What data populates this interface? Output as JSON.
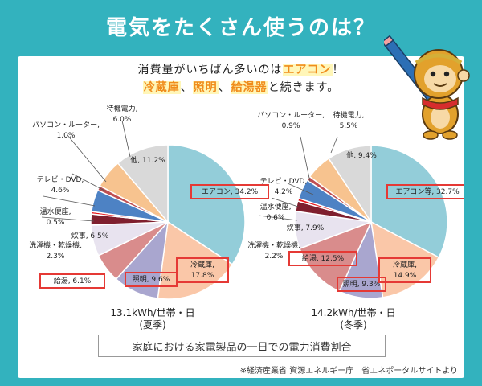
{
  "banner": {
    "title": "電気をたくさん使うのは？"
  },
  "headline": {
    "line1_prefix": "消費量がいちばん多いのは",
    "line1_emph": "エアコン",
    "line1_suffix": "！",
    "line2_items": [
      "冷蔵庫",
      "照明",
      "給湯器"
    ],
    "line2_sep": "、",
    "line2_suffix": "と続きます。"
  },
  "chart_data": [
    {
      "type": "pie",
      "total_label": "13.1kWh/世帯・日",
      "season_label": "(夏季)",
      "slices": [
        {
          "label": "エアコン",
          "value": 34.2,
          "value_text": "34.2%",
          "color": "#93cdd9",
          "highlight": true
        },
        {
          "label": "冷蔵庫",
          "value": 17.8,
          "value_text": "17.8%",
          "color": "#fac7a8",
          "highlight": true
        },
        {
          "label": "照明",
          "value": 9.6,
          "value_text": "9.6%",
          "color": "#a9a6cf",
          "highlight": true
        },
        {
          "label": "給湯",
          "value": 6.1,
          "value_text": "6.1%",
          "color": "#d98c8c",
          "highlight": true
        },
        {
          "label": "炊事",
          "value": 6.5,
          "value_text": "6.5%",
          "color": "#e8e3ef",
          "highlight": false
        },
        {
          "label": "洗濯機・乾燥機",
          "value": 2.3,
          "value_text": "2.3%",
          "color": "#7f1f2e",
          "highlight": false
        },
        {
          "label": "温水便座",
          "value": 0.5,
          "value_text": "0.5%",
          "color": "#e8161b",
          "highlight": false
        },
        {
          "label": "テレビ・DVD",
          "value": 4.6,
          "value_text": "4.6%",
          "color": "#4d82c4",
          "highlight": false
        },
        {
          "label": "パソコン・ルーター",
          "value": 1.0,
          "value_text": "1.0%",
          "color": "#c04f52",
          "highlight": false
        },
        {
          "label": "待機電力",
          "value": 6.0,
          "value_text": "6.0%",
          "color": "#f7c38f",
          "highlight": false
        },
        {
          "label": "他",
          "value": 11.2,
          "value_text": "11.2%",
          "color": "#d9d9d9",
          "highlight": false
        }
      ]
    },
    {
      "type": "pie",
      "total_label": "14.2kWh/世帯・日",
      "season_label": "(冬季)",
      "slices": [
        {
          "label": "エアコン等",
          "value": 32.7,
          "value_text": "32.7%",
          "color": "#93cdd9",
          "highlight": true
        },
        {
          "label": "冷蔵庫",
          "value": 14.9,
          "value_text": "14.9%",
          "color": "#fac7a8",
          "highlight": true
        },
        {
          "label": "照明",
          "value": 9.3,
          "value_text": "9.3%",
          "color": "#a9a6cf",
          "highlight": true
        },
        {
          "label": "給湯",
          "value": 12.5,
          "value_text": "12.5%",
          "color": "#d98c8c",
          "highlight": true
        },
        {
          "label": "炊事",
          "value": 7.9,
          "value_text": "7.9%",
          "color": "#e8e3ef",
          "highlight": false
        },
        {
          "label": "洗濯機・乾燥機",
          "value": 2.2,
          "value_text": "2.2%",
          "color": "#7f1f2e",
          "highlight": false
        },
        {
          "label": "温水便座",
          "value": 0.6,
          "value_text": "0.6%",
          "color": "#e8161b",
          "highlight": false
        },
        {
          "label": "テレビ・DVD",
          "value": 4.2,
          "value_text": "4.2%",
          "color": "#4d82c4",
          "highlight": false
        },
        {
          "label": "パソコン・ルーター",
          "value": 0.9,
          "value_text": "0.9%",
          "color": "#c04f52",
          "highlight": false
        },
        {
          "label": "待機電力",
          "value": 5.5,
          "value_text": "5.5%",
          "color": "#f7c38f",
          "highlight": false
        },
        {
          "label": "他",
          "value": 9.4,
          "value_text": "9.4%",
          "color": "#d9d9d9",
          "highlight": false
        }
      ]
    }
  ],
  "caption": "家庭における家電製品の一日での電力消費割合",
  "source": "※経済産業省 資源エネルギー庁　省エネポータルサイトより",
  "colors": {
    "banner": "#33b2be",
    "highlight_box": "#e53935",
    "accent_orange": "#f08c1c"
  },
  "mascot": {
    "icon": "monkey-with-pencil-icon"
  }
}
